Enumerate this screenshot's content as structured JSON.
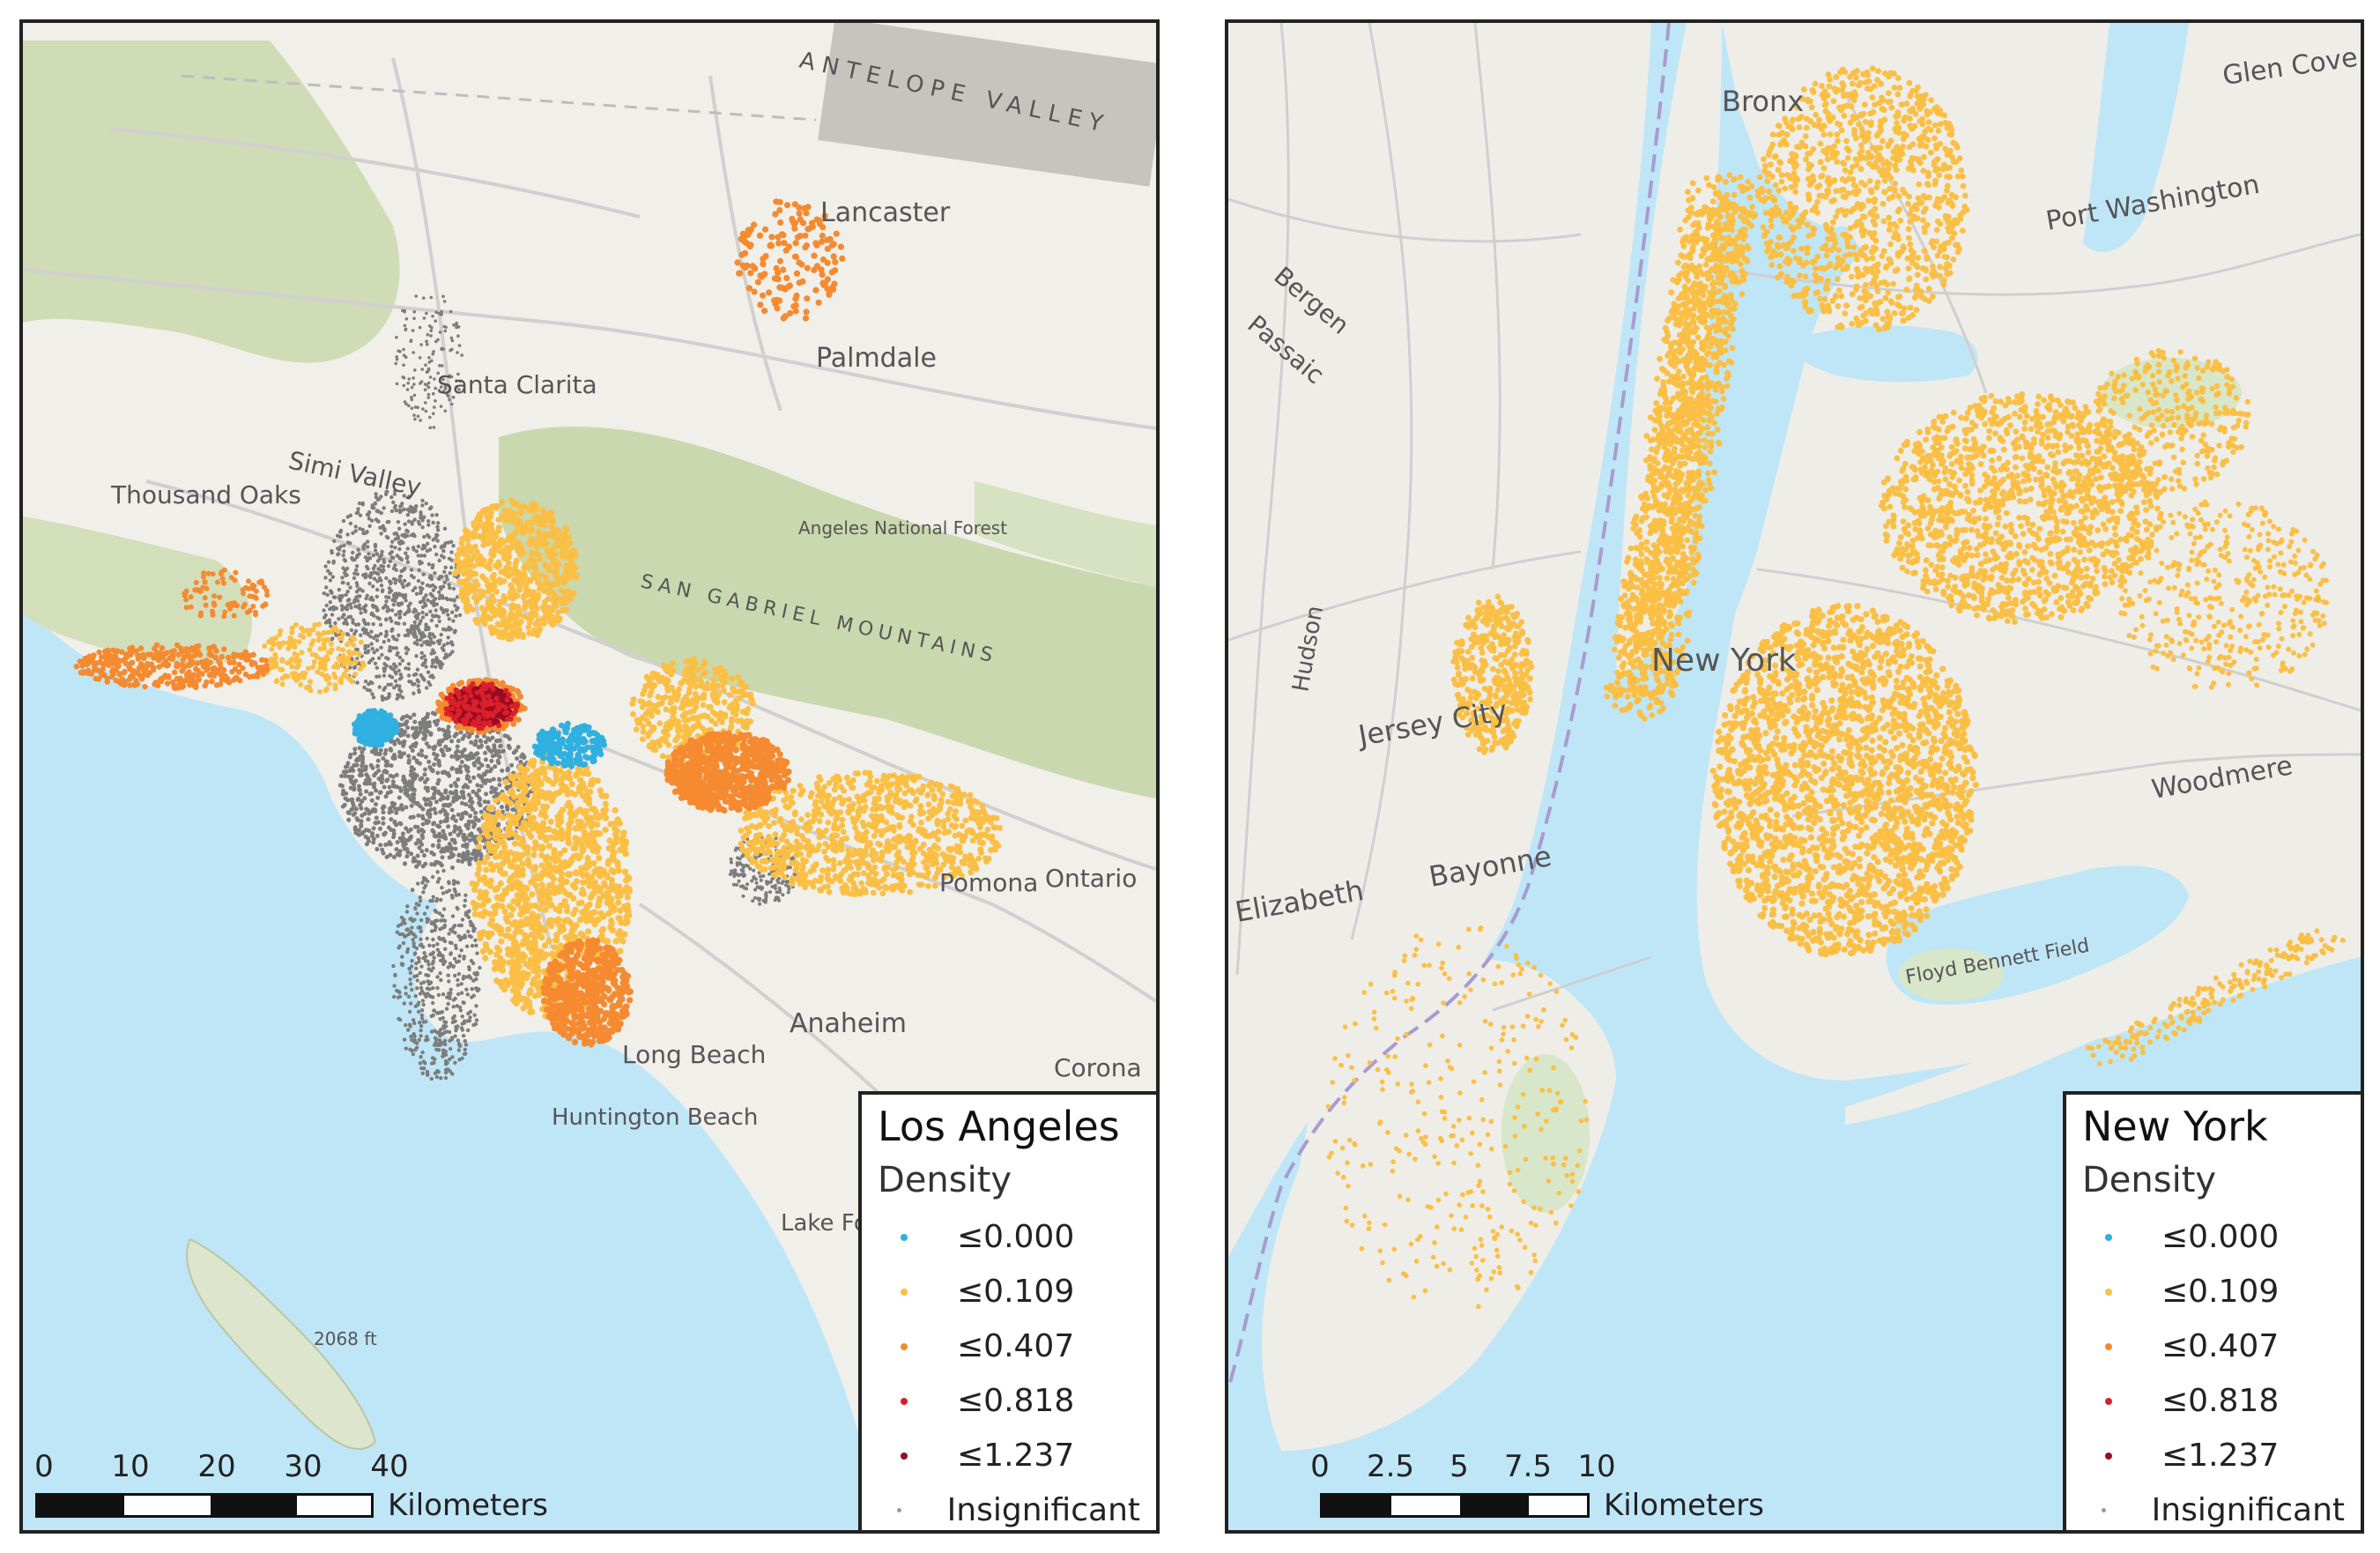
{
  "colors": {
    "water": "#bfe6f7",
    "land": "#f1efe9",
    "forest": "#cfdcb6",
    "road": "#d4d4d4",
    "density_0_000": "#2fb0e0",
    "density_0_109": "#fbbf45",
    "density_0_407": "#f58a30",
    "density_0_818": "#d9202a",
    "density_1_237": "#9b0b22",
    "insignificant": "#7d7d7d"
  },
  "legend_items": [
    {
      "label": "≤0.000",
      "color": "#2fb0e0"
    },
    {
      "label": "≤0.109",
      "color": "#fbbf45"
    },
    {
      "label": "≤0.407",
      "color": "#f58a30"
    },
    {
      "label": "≤0.818",
      "color": "#d9202a"
    },
    {
      "label": "≤1.237",
      "color": "#9b0b22"
    },
    {
      "label": "Insignificant",
      "color": "#9a9a9a"
    }
  ],
  "la": {
    "title": "Los Angeles",
    "subtitle": "Density",
    "scale_ticks": [
      "0",
      "10",
      "20",
      "30",
      "40"
    ],
    "scale_unit": "Kilometers",
    "places": [
      "Lancaster",
      "Palmdale",
      "Santa Clarita",
      "Simi Valley",
      "Thousand Oaks",
      "Ontario",
      "Pomona",
      "Anaheim",
      "Huntington Beach",
      "Long Beach",
      "Corona",
      "Lake Forest",
      "SAN GABRIEL MOUNTAINS",
      "Angeles National Forest",
      "ANTELOPE VALLEY",
      "2068 ft"
    ]
  },
  "ny": {
    "title": "New York",
    "subtitle": "Density",
    "scale_ticks": [
      "0",
      "2.5",
      "5",
      "7.5",
      "10"
    ],
    "scale_unit": "Kilometers",
    "places": [
      "Bronx",
      "Glen Cove",
      "Port Washington",
      "Bergen",
      "Passaic",
      "Jersey City",
      "Bayonne",
      "Elizabeth",
      "Woodmere",
      "Floyd Bennett Field",
      "Hudson",
      "New York"
    ]
  }
}
